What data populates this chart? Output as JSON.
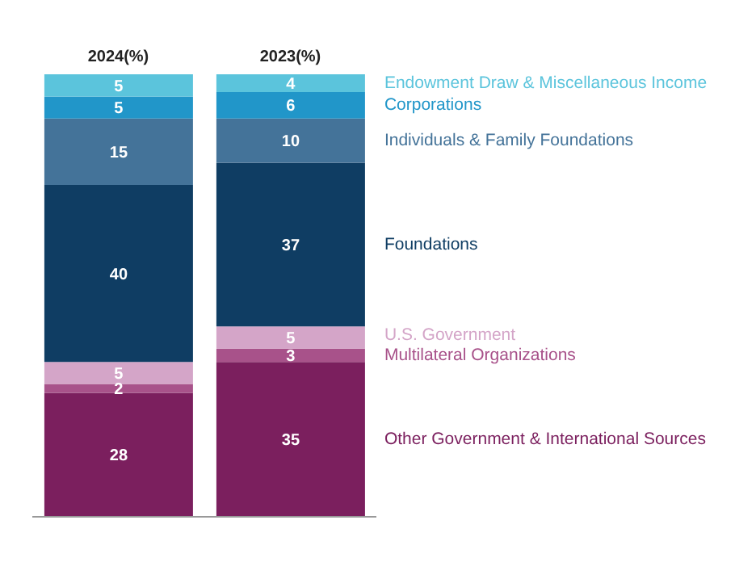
{
  "chart_data": {
    "type": "bar",
    "stacked": true,
    "data_labels": true,
    "tick_labels": "x",
    "categories": [
      "2024(%)",
      "2023(%)"
    ],
    "series": [
      {
        "name": "Other Government & International Sources",
        "color": "#7b1f5e",
        "values": [
          28,
          35
        ]
      },
      {
        "name": "Multilateral Organizations",
        "color": "#a8528a",
        "values": [
          2,
          3
        ]
      },
      {
        "name": "U.S. Government",
        "color": "#d4a5c8",
        "values": [
          5,
          5
        ]
      },
      {
        "name": "Foundations",
        "color": "#0f3d63",
        "values": [
          40,
          37
        ]
      },
      {
        "name": "Individuals & Family Foundations",
        "color": "#447399",
        "values": [
          15,
          10
        ]
      },
      {
        "name": "Corporations",
        "color": "#2196c9",
        "values": [
          5,
          6
        ]
      },
      {
        "name": "Endowment Draw & Miscellaneous Income",
        "color": "#5bc4dc",
        "values": [
          5,
          4
        ]
      }
    ]
  }
}
